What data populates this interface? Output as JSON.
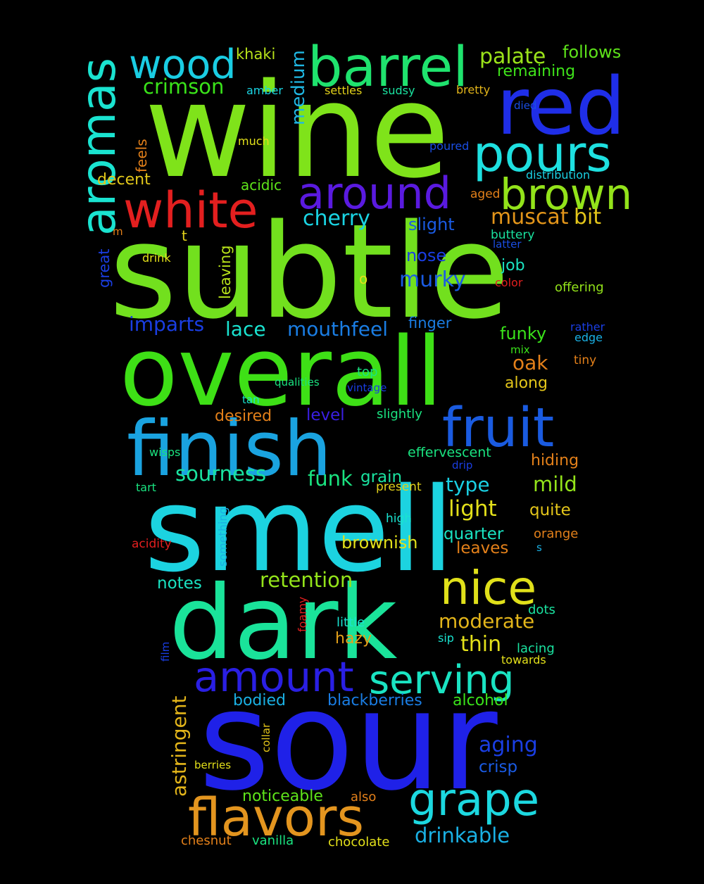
{
  "background": "#000000",
  "words": [
    {
      "text": "wine",
      "color": "#7fe31a"
    },
    {
      "text": "subtle",
      "color": "#72e01e"
    },
    {
      "text": "smell",
      "color": "#1cd3e0"
    },
    {
      "text": "sour",
      "color": "#1f21e8"
    },
    {
      "text": "overall",
      "color": "#3ee016"
    },
    {
      "text": "dark",
      "color": "#1ae39a"
    },
    {
      "text": "finish",
      "color": "#1aa3e0"
    },
    {
      "text": "red",
      "color": "#1f2ee8"
    },
    {
      "text": "barrel",
      "color": "#1fe36e"
    },
    {
      "text": "pours",
      "color": "#1ee0e0"
    },
    {
      "text": "white",
      "color": "#e31f1f"
    },
    {
      "text": "around",
      "color": "#5a1ae0"
    },
    {
      "text": "brown",
      "color": "#93e31a"
    },
    {
      "text": "aromas",
      "color": "#1ae3d0"
    },
    {
      "text": "wood",
      "color": "#1acde3"
    },
    {
      "text": "fruit",
      "color": "#1a5be0"
    },
    {
      "text": "flavors",
      "color": "#e3951f"
    },
    {
      "text": "grape",
      "color": "#1cd8e0"
    },
    {
      "text": "nice",
      "color": "#e0e01a"
    },
    {
      "text": "amount",
      "color": "#2a1fe3"
    },
    {
      "text": "serving",
      "color": "#1ae3c2"
    },
    {
      "text": "palate",
      "color": "#9be31a"
    },
    {
      "text": "follows",
      "color": "#5ee31a"
    },
    {
      "text": "remaining",
      "color": "#3fe31a"
    },
    {
      "text": "khaki",
      "color": "#b8e31a"
    },
    {
      "text": "medium",
      "color": "#1fb7e3"
    },
    {
      "text": "crimson",
      "color": "#3ae31a"
    },
    {
      "text": "amber",
      "color": "#1ad4e3"
    },
    {
      "text": "settles",
      "color": "#e3d21a"
    },
    {
      "text": "sudsy",
      "color": "#1ae3a0"
    },
    {
      "text": "bretty",
      "color": "#e3b51a"
    },
    {
      "text": "died",
      "color": "#1a4ee3"
    },
    {
      "text": "much",
      "color": "#e3e01a"
    },
    {
      "text": "feels",
      "color": "#e3801a"
    },
    {
      "text": "poured",
      "color": "#1a4ee3"
    },
    {
      "text": "distribution",
      "color": "#1ad0e3"
    },
    {
      "text": "decent",
      "color": "#e3c81a"
    },
    {
      "text": "acidic",
      "color": "#5ee31a"
    },
    {
      "text": "aged",
      "color": "#e3801a"
    },
    {
      "text": "muscat",
      "color": "#e3951a"
    },
    {
      "text": "bit",
      "color": "#e3c51a"
    },
    {
      "text": "cherry",
      "color": "#1ad4e3"
    },
    {
      "text": "slight",
      "color": "#1a5be3"
    },
    {
      "text": "buttery",
      "color": "#1ae3a0"
    },
    {
      "text": "latter",
      "color": "#1a4ee3"
    },
    {
      "text": "m",
      "color": "#e3801a"
    },
    {
      "text": "t",
      "color": "#e3d21a"
    },
    {
      "text": "leaving",
      "color": "#b8e31a"
    },
    {
      "text": "great",
      "color": "#1a3ee3"
    },
    {
      "text": "drink",
      "color": "#e3e01a"
    },
    {
      "text": "nose",
      "color": "#1a3ee3"
    },
    {
      "text": "murky",
      "color": "#1a5be3"
    },
    {
      "text": "job",
      "color": "#1ae3c2"
    },
    {
      "text": "color",
      "color": "#e31f1f"
    },
    {
      "text": "offering",
      "color": "#93e31a"
    },
    {
      "text": "o",
      "color": "#e3e01a"
    },
    {
      "text": "imparts",
      "color": "#1a3ee3"
    },
    {
      "text": "lace",
      "color": "#1ae3d0"
    },
    {
      "text": "mouthfeel",
      "color": "#1a7de3"
    },
    {
      "text": "finger",
      "color": "#1a7de3"
    },
    {
      "text": "funky",
      "color": "#3ae31a"
    },
    {
      "text": "rather",
      "color": "#1a3ee3"
    },
    {
      "text": "edge",
      "color": "#1ab0e3"
    },
    {
      "text": "mix",
      "color": "#3ae31a"
    },
    {
      "text": "oak",
      "color": "#e3801a"
    },
    {
      "text": "tiny",
      "color": "#e3801a"
    },
    {
      "text": "top",
      "color": "#1ae380"
    },
    {
      "text": "along",
      "color": "#e3c51a"
    },
    {
      "text": "qualities",
      "color": "#1ae380"
    },
    {
      "text": "vintage",
      "color": "#1a3ee3"
    },
    {
      "text": "tan",
      "color": "#1ae3d0"
    },
    {
      "text": "desired",
      "color": "#e3801a"
    },
    {
      "text": "level",
      "color": "#3a1fe3"
    },
    {
      "text": "slightly",
      "color": "#1ae380"
    },
    {
      "text": "effervescent",
      "color": "#1ae380"
    },
    {
      "text": "wisps",
      "color": "#1ae380"
    },
    {
      "text": "drip",
      "color": "#1a3ee3"
    },
    {
      "text": "hiding",
      "color": "#e3801a"
    },
    {
      "text": "sourness",
      "color": "#1ae3a0"
    },
    {
      "text": "funk",
      "color": "#1ae380"
    },
    {
      "text": "grain",
      "color": "#1ae3a0"
    },
    {
      "text": "type",
      "color": "#1ad0e3"
    },
    {
      "text": "mild",
      "color": "#93e31a"
    },
    {
      "text": "tart",
      "color": "#1ae380"
    },
    {
      "text": "present",
      "color": "#e3d21a"
    },
    {
      "text": "light",
      "color": "#e3e01a"
    },
    {
      "text": "quite",
      "color": "#e3c51a"
    },
    {
      "text": "something",
      "color": "#1ab0e3"
    },
    {
      "text": "high",
      "color": "#1ae3d0"
    },
    {
      "text": "acidity",
      "color": "#e31f1f"
    },
    {
      "text": "quarter",
      "color": "#1ae3c2"
    },
    {
      "text": "orange",
      "color": "#e3801a"
    },
    {
      "text": "brownish",
      "color": "#e3e01a"
    },
    {
      "text": "leaves",
      "color": "#e3801a"
    },
    {
      "text": "s",
      "color": "#1ab0e3"
    },
    {
      "text": "notes",
      "color": "#1ae3c2"
    },
    {
      "text": "retention",
      "color": "#93e31a"
    },
    {
      "text": "dots",
      "color": "#1ae3a0"
    },
    {
      "text": "foamy",
      "color": "#e31f1f"
    },
    {
      "text": "moderate",
      "color": "#e3b51a"
    },
    {
      "text": "little",
      "color": "#1ae3d0"
    },
    {
      "text": "film",
      "color": "#1a3ee3"
    },
    {
      "text": "hazy",
      "color": "#e3a01a"
    },
    {
      "text": "sip",
      "color": "#1ae3d0"
    },
    {
      "text": "thin",
      "color": "#e3e01a"
    },
    {
      "text": "lacing",
      "color": "#1ae3a0"
    },
    {
      "text": "towards",
      "color": "#e3e01a"
    },
    {
      "text": "astringent",
      "color": "#e3b51a"
    },
    {
      "text": "bodied",
      "color": "#1ab0e3"
    },
    {
      "text": "blackberries",
      "color": "#1a7de3"
    },
    {
      "text": "alcohol",
      "color": "#3ae31a"
    },
    {
      "text": "collar",
      "color": "#e3c51a"
    },
    {
      "text": "aging",
      "color": "#1a3ee3"
    },
    {
      "text": "crisp",
      "color": "#1a5be3"
    },
    {
      "text": "berries",
      "color": "#e3e01a"
    },
    {
      "text": "noticeable",
      "color": "#5ee31a"
    },
    {
      "text": "also",
      "color": "#e3801a"
    },
    {
      "text": "chesnut",
      "color": "#e3801a"
    },
    {
      "text": "vanilla",
      "color": "#1ae380"
    },
    {
      "text": "chocolate",
      "color": "#e3e01a"
    },
    {
      "text": "drinkable",
      "color": "#1ab0e3"
    }
  ]
}
